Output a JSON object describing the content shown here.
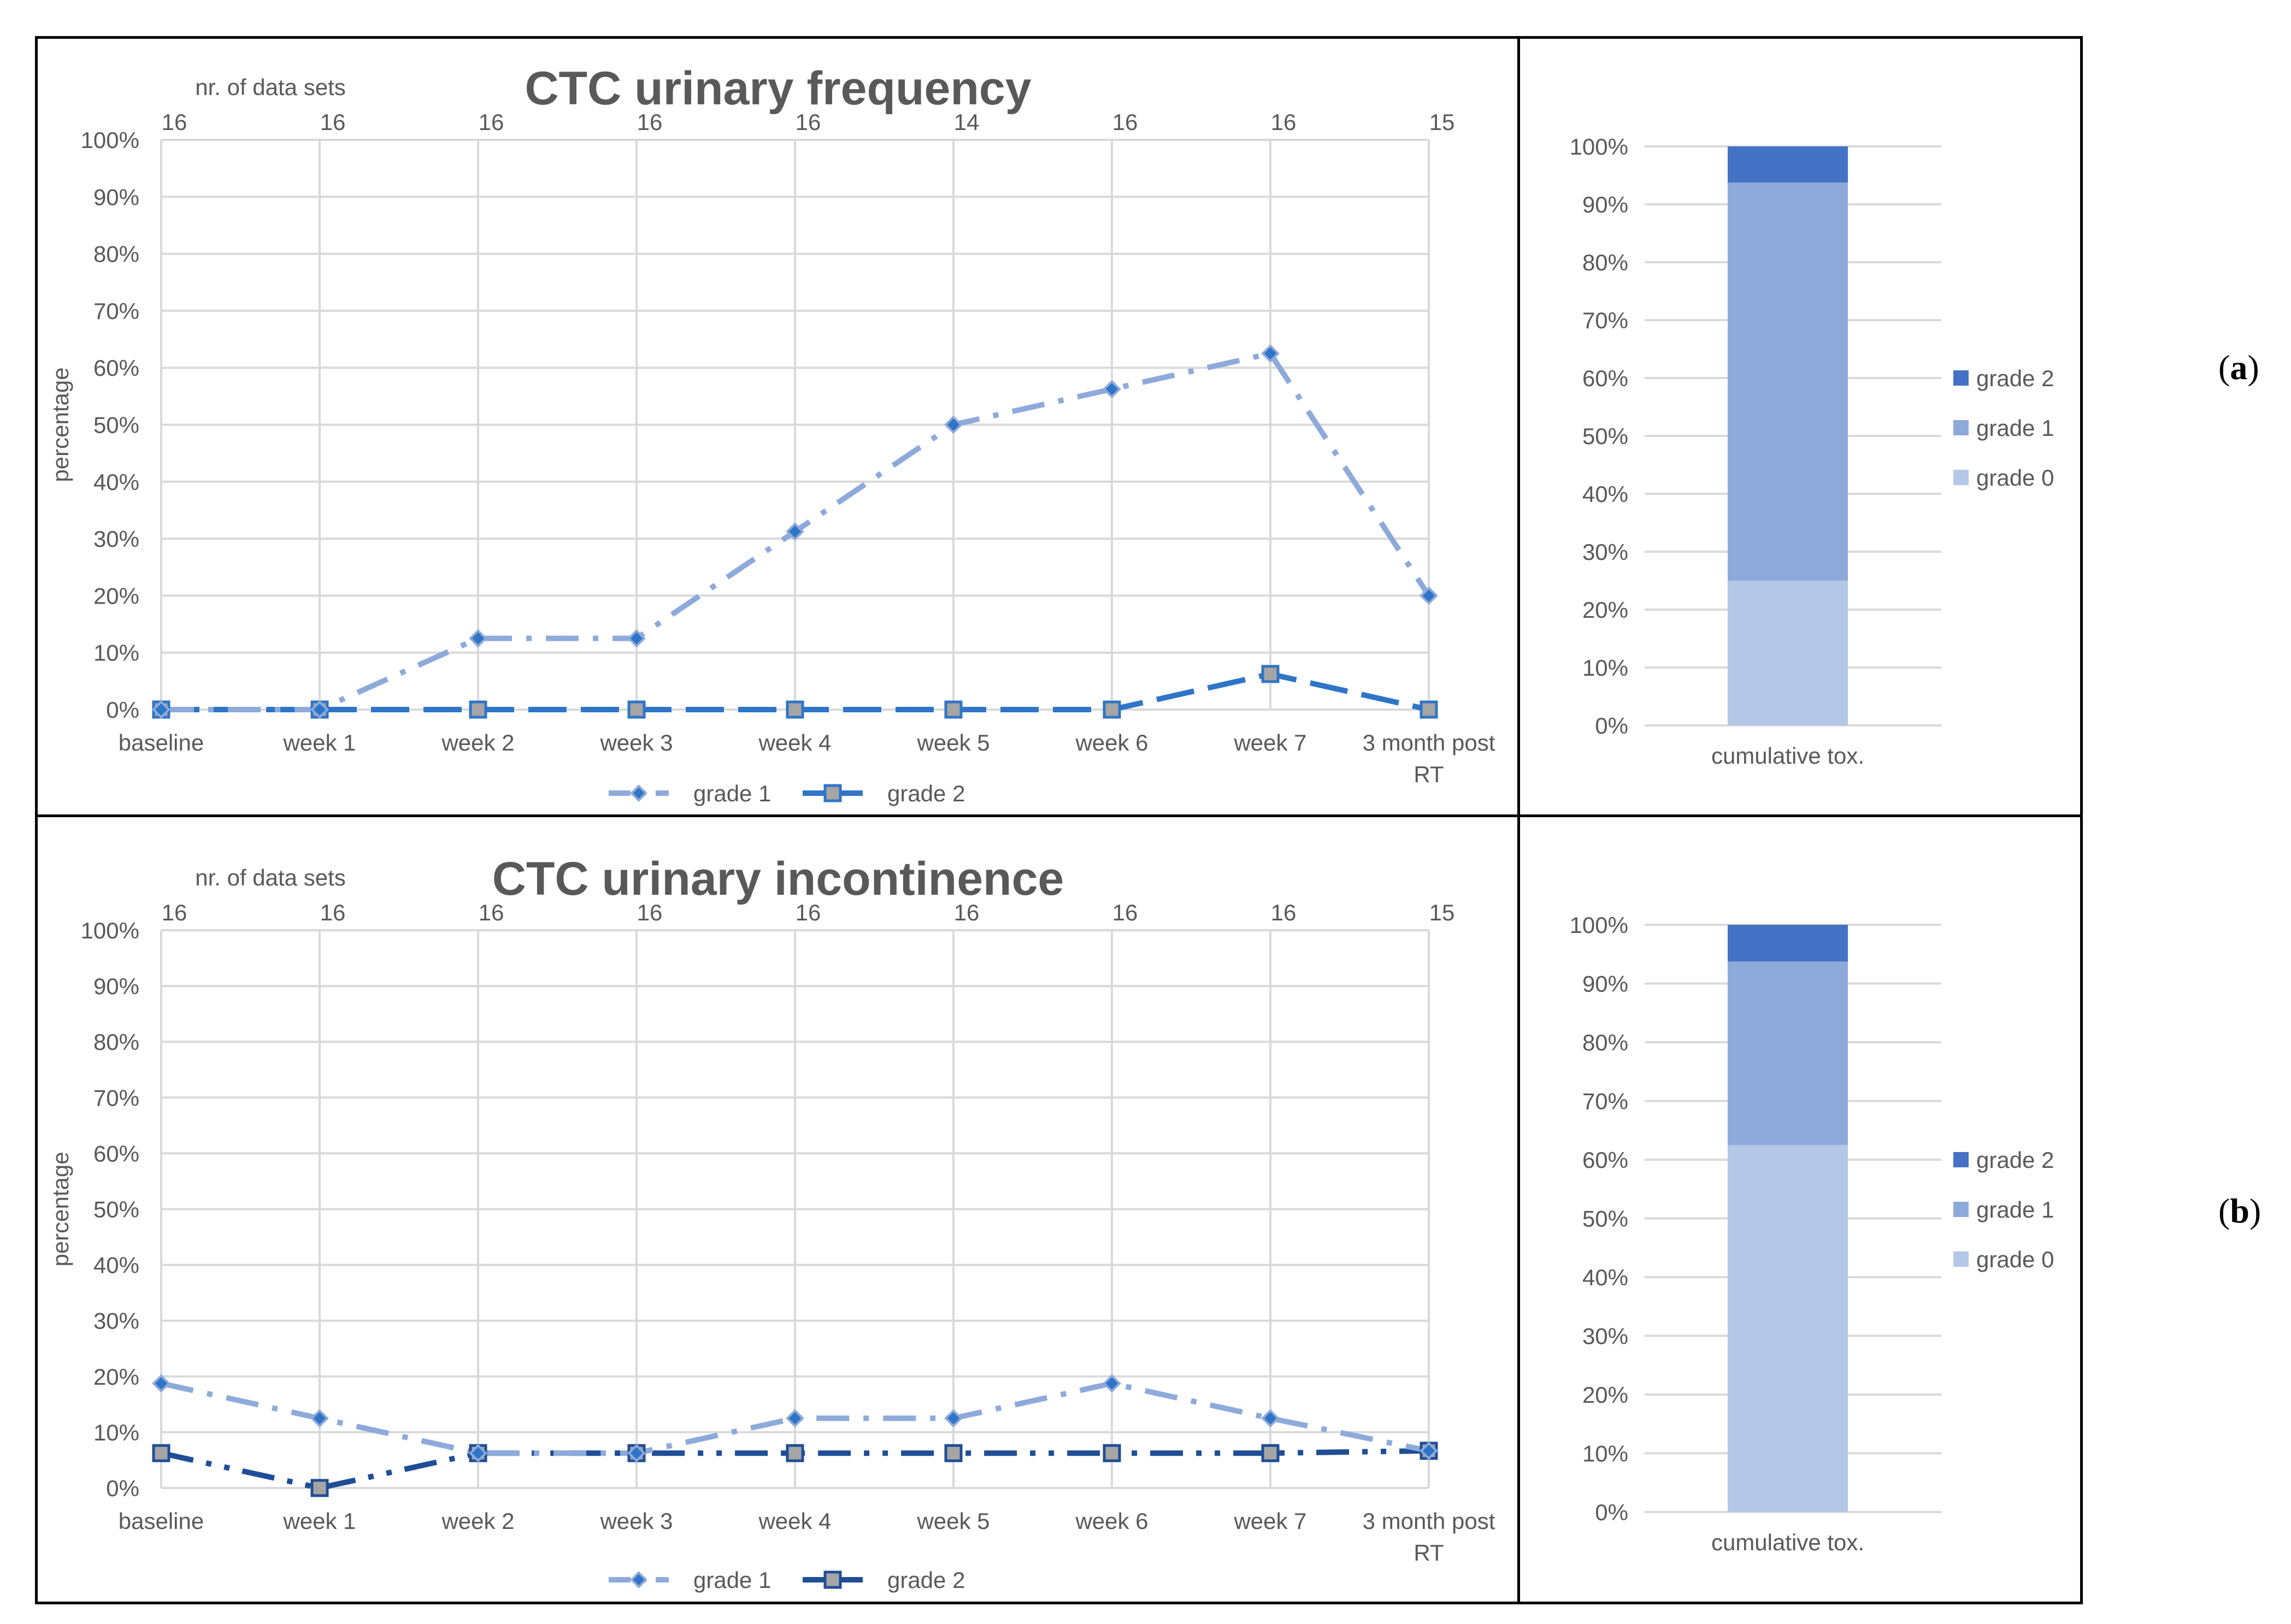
{
  "panel_labels": {
    "a": "a",
    "b": "b"
  },
  "colors": {
    "grade1": "#8eaadb",
    "grade2_a": "#2f75c7",
    "grade2_b": "#1f4e96",
    "marker_fill": "#a5a5a5",
    "grid": "#d9d9d9",
    "axis_text": "#595959",
    "title": "#595959",
    "bar_grade0": "#b4c7e7",
    "bar_grade1": "#8eaadb",
    "bar_grade2": "#4472c4"
  },
  "chart_data": [
    {
      "id": "a-line",
      "type": "line",
      "title": "CTC urinary frequency",
      "ylabel": "percentage",
      "top_axis_label": "nr. of data sets",
      "categories": [
        "baseline",
        "week 1",
        "week 2",
        "week 3",
        "week 4",
        "week 5",
        "week 6",
        "week 7",
        "3 month post RT"
      ],
      "top_counts": [
        "16",
        "16",
        "16",
        "16",
        "16",
        "14",
        "16",
        "16",
        "15"
      ],
      "yticks": [
        "0%",
        "10%",
        "20%",
        "30%",
        "40%",
        "50%",
        "60%",
        "70%",
        "80%",
        "90%",
        "100%"
      ],
      "ylim": [
        0,
        100
      ],
      "series": [
        {
          "name": "grade 1",
          "values": [
            0,
            0,
            12.5,
            12.5,
            31.25,
            50,
            56.25,
            62.5,
            20
          ]
        },
        {
          "name": "grade 2",
          "values": [
            0,
            0,
            0,
            0,
            0,
            0,
            0,
            6.25,
            0
          ]
        }
      ]
    },
    {
      "id": "a-bar",
      "type": "bar",
      "stacked": true,
      "categories": [
        "cumulative tox."
      ],
      "yticks": [
        "0%",
        "10%",
        "20%",
        "30%",
        "40%",
        "50%",
        "60%",
        "70%",
        "80%",
        "90%",
        "100%"
      ],
      "ylim": [
        0,
        100
      ],
      "legend": [
        "grade 2",
        "grade 1",
        "grade 0"
      ],
      "series": [
        {
          "name": "grade 0",
          "values": [
            25
          ]
        },
        {
          "name": "grade 1",
          "values": [
            68.75
          ]
        },
        {
          "name": "grade 2",
          "values": [
            6.25
          ]
        }
      ]
    },
    {
      "id": "b-line",
      "type": "line",
      "title": "CTC urinary incontinence",
      "ylabel": "percentage",
      "top_axis_label": "nr. of data sets",
      "categories": [
        "baseline",
        "week 1",
        "week 2",
        "week 3",
        "week 4",
        "week 5",
        "week 6",
        "week 7",
        "3 month post RT"
      ],
      "top_counts": [
        "16",
        "16",
        "16",
        "16",
        "16",
        "16",
        "16",
        "16",
        "15"
      ],
      "yticks": [
        "0%",
        "10%",
        "20%",
        "30%",
        "40%",
        "50%",
        "60%",
        "70%",
        "80%",
        "90%",
        "100%"
      ],
      "ylim": [
        0,
        100
      ],
      "series": [
        {
          "name": "grade 1",
          "values": [
            18.75,
            12.5,
            6.25,
            6.25,
            12.5,
            12.5,
            18.75,
            12.5,
            6.67
          ]
        },
        {
          "name": "grade 2",
          "values": [
            6.25,
            0,
            6.25,
            6.25,
            6.25,
            6.25,
            6.25,
            6.25,
            6.67
          ]
        }
      ]
    },
    {
      "id": "b-bar",
      "type": "bar",
      "stacked": true,
      "categories": [
        "cumulative tox."
      ],
      "yticks": [
        "0%",
        "10%",
        "20%",
        "30%",
        "40%",
        "50%",
        "60%",
        "70%",
        "80%",
        "90%",
        "100%"
      ],
      "ylim": [
        0,
        100
      ],
      "legend": [
        "grade 2",
        "grade 1",
        "grade 0"
      ],
      "series": [
        {
          "name": "grade 0",
          "values": [
            62.5
          ]
        },
        {
          "name": "grade 1",
          "values": [
            31.25
          ]
        },
        {
          "name": "grade 2",
          "values": [
            6.25
          ]
        }
      ]
    }
  ]
}
